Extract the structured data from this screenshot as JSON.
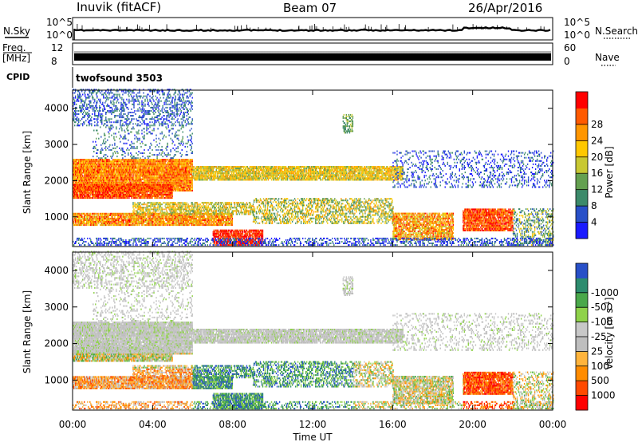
{
  "header": {
    "station": "Inuvik (fitACF)",
    "beam": "Beam 07",
    "date": "26/Apr/2016"
  },
  "summary": {
    "nsky_label": "N.Sky",
    "nsearch_label": "N.Search",
    "noise_left_ticks": [
      "10^5",
      "10^0"
    ],
    "noise_right_ticks": [
      "10^5",
      "10^0"
    ],
    "freq_label_1": "Freq.",
    "freq_label_2": "[MHz]",
    "freq_ticks": [
      "12",
      "8"
    ],
    "nave_label": "Nave",
    "nave_ticks": [
      "60",
      "0"
    ],
    "cpid_label": "CPID",
    "cpid_value": "twofsound 3503"
  },
  "colors": {
    "power_scale": [
      "#1a1aff",
      "#2850c8",
      "#3c8a6a",
      "#64a050",
      "#c8c832",
      "#ffc800",
      "#ff9600",
      "#ff5a00",
      "#ff0000"
    ],
    "velocity_scale": [
      "#ff0000",
      "#ff4a00",
      "#ff8c00",
      "#ffb43c",
      "#bebebe",
      "#c8c8c8",
      "#8fd24a",
      "#4aa84a",
      "#2d8c6e",
      "#2850c8",
      "#1a1aff"
    ]
  },
  "chart_data": [
    {
      "type": "heatmap",
      "panel": "power",
      "ylabel": "Slant Range [km]",
      "yticks": [
        "1000",
        "2000",
        "3000",
        "4000"
      ],
      "colorbar_label": "Power [dB]",
      "colorbar_ticks": [
        "4",
        "8",
        "12",
        "16",
        "20",
        "24",
        "28"
      ],
      "vmin": 0,
      "vmax": 32,
      "ylim": [
        180,
        4500
      ]
    },
    {
      "type": "heatmap",
      "panel": "velocity",
      "ylabel": "Slant Range [km]",
      "yticks": [
        "1000",
        "2000",
        "3000",
        "4000"
      ],
      "xlabel": "Time UT",
      "xticks": [
        "00:00",
        "04:00",
        "08:00",
        "12:00",
        "16:00",
        "20:00",
        "00:00"
      ],
      "colorbar_label": "Velocity [m s",
      "colorbar_label_sup": "-1",
      "colorbar_label_end": "]",
      "colorbar_ticks": [
        "1000",
        "500",
        "100",
        "25",
        "-25",
        "-100",
        "-500",
        "-1000"
      ],
      "xlim": [
        0,
        24
      ],
      "ylim": [
        180,
        4500
      ]
    }
  ]
}
